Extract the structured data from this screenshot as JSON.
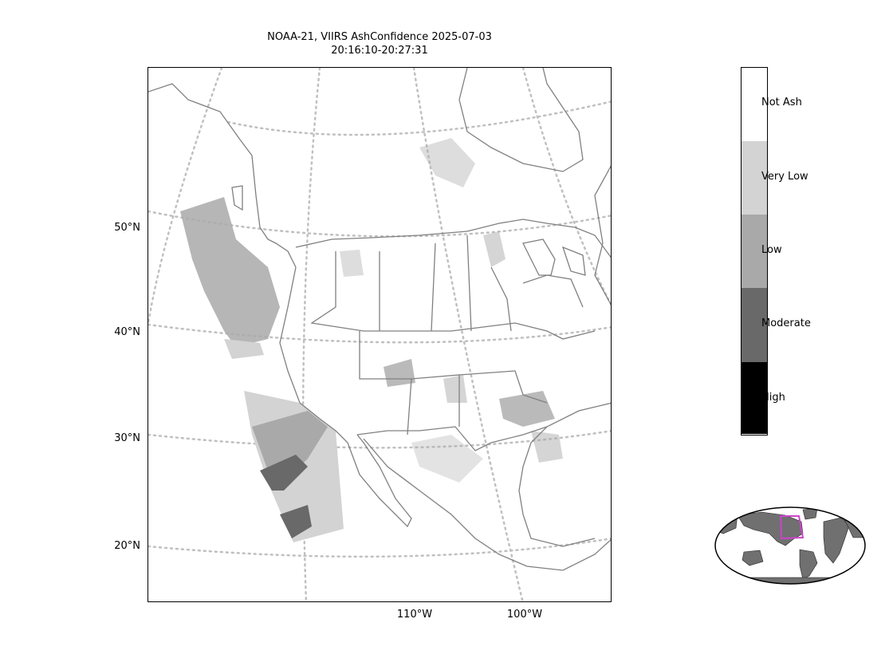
{
  "title": {
    "line1": "NOAA-21, VIIRS AshConfidence 2025-07-03",
    "line2": "20:16:10-20:27:31"
  },
  "latitude_labels": [
    "50°N",
    "40°N",
    "30°N",
    "20°N"
  ],
  "longitude_labels": [
    "110°W",
    "100°W"
  ],
  "colorbar": {
    "categories": [
      {
        "label": "Not Ash",
        "color": "#ffffff"
      },
      {
        "label": "Very Low",
        "color": "#d3d3d3"
      },
      {
        "label": "Low",
        "color": "#a9a9a9"
      },
      {
        "label": "Moderate",
        "color": "#696969"
      },
      {
        "label": "High",
        "color": "#000000"
      }
    ]
  },
  "inset": {
    "highlight_color": "#cc44cc",
    "land_color": "#707070"
  },
  "map_colors": {
    "coastline": "#808080",
    "graticule": "#c0c0c0",
    "swath_light": "#d3d3d3",
    "swath_mid": "#a9a9a9",
    "swath_dark": "#696969"
  }
}
